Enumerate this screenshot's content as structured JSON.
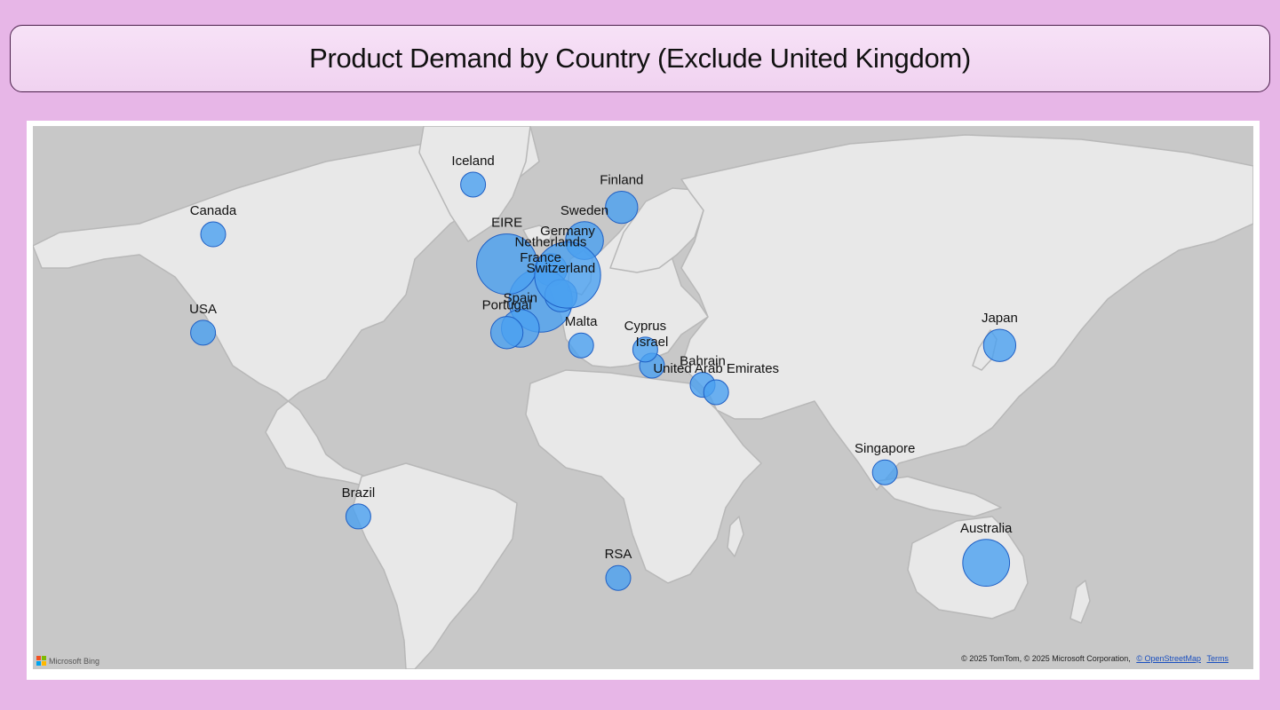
{
  "title": "Product Demand by Country (Exclude United Kingdom)",
  "map": {
    "attribution_text": "© 2025 TomTom, © 2025 Microsoft Corporation,",
    "osm_link": "© OpenStreetMap",
    "terms_link": "Terms",
    "logo_text": "Microsoft Bing",
    "bubble_color": "#4aa0f0",
    "bubble_stroke": "#1f5fc4",
    "land_color": "#e8e8e8",
    "water_color": "#c8c8c8"
  },
  "countries": [
    {
      "name": "Canada",
      "lat": 58,
      "lon": -95,
      "size": 1
    },
    {
      "name": "USA",
      "lat": 39,
      "lon": -98,
      "size": 1
    },
    {
      "name": "Iceland",
      "lat": 65,
      "lon": -18,
      "size": 1
    },
    {
      "name": "Finland",
      "lat": 62,
      "lon": 26,
      "size": 2
    },
    {
      "name": "Netherlands",
      "lat": 52,
      "lon": 5,
      "size": 2
    },
    {
      "name": "Sweden",
      "lat": 57,
      "lon": 15,
      "size": 3
    },
    {
      "name": "France",
      "lat": 46,
      "lon": 2,
      "size": 10
    },
    {
      "name": "Spain",
      "lat": 40,
      "lon": -4,
      "size": 3
    },
    {
      "name": "Switzerland",
      "lat": 47,
      "lon": 8,
      "size": 2
    },
    {
      "name": "EIRE",
      "lat": 53,
      "lon": -8,
      "size": 9
    },
    {
      "name": "Germany",
      "lat": 51,
      "lon": 10,
      "size": 11
    },
    {
      "name": "Portugal",
      "lat": 39,
      "lon": -8,
      "size": 2
    },
    {
      "name": "Malta",
      "lat": 36,
      "lon": 14,
      "size": 1
    },
    {
      "name": "Israel",
      "lat": 31,
      "lon": 35,
      "size": 1
    },
    {
      "name": "Cyprus",
      "lat": 35,
      "lon": 33,
      "size": 1
    },
    {
      "name": "Bahrain",
      "lat": 26,
      "lon": 50,
      "size": 1
    },
    {
      "name": "United Arab Emirates",
      "lat": 24,
      "lon": 54,
      "size": 1
    },
    {
      "name": "Japan",
      "lat": 36,
      "lon": 138,
      "size": 2
    },
    {
      "name": "Singapore",
      "lat": 1,
      "lon": 104,
      "size": 1
    },
    {
      "name": "Brazil",
      "lat": -12,
      "lon": -52,
      "size": 1
    },
    {
      "name": "RSA",
      "lat": -29,
      "lon": 25,
      "size": 1
    },
    {
      "name": "Australia",
      "lat": -25,
      "lon": 134,
      "size": 5
    }
  ]
}
